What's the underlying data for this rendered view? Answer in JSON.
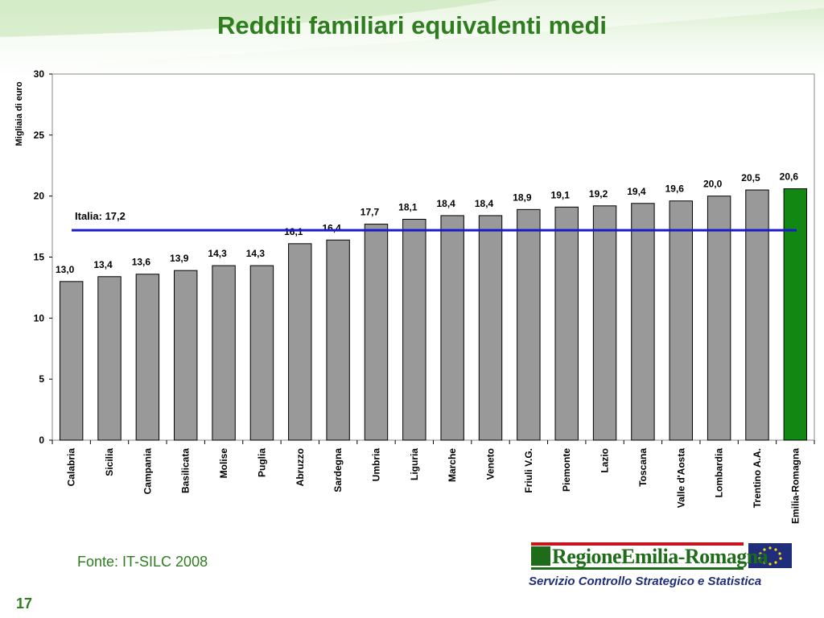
{
  "title": "Redditi familiari equivalenti medi",
  "source": "Fonte: IT-SILC 2008",
  "page_number": "17",
  "logo": {
    "name": "RegioneEmilia-Romagna",
    "service": "Servizio Controllo Strategico e Statistica"
  },
  "colors": {
    "bar": "#999999",
    "highlight_bar": "#118811",
    "reference_line": "#1a1acc",
    "title": "#2e7d1f"
  },
  "chart_data": {
    "type": "bar",
    "title": "",
    "ylabel": "Migliaia di euro",
    "xlabel": "",
    "ylim": [
      0,
      30
    ],
    "yticks": [
      0,
      5,
      10,
      15,
      20,
      25,
      30
    ],
    "grid": false,
    "categories": [
      "Calabria",
      "Sicilia",
      "Campania",
      "Basilicata",
      "Molise",
      "Puglia",
      "Abruzzo",
      "Sardegna",
      "Umbria",
      "Liguria",
      "Marche",
      "Veneto",
      "Friuli V.G.",
      "Piemonte",
      "Lazio",
      "Toscana",
      "Valle d'Aosta",
      "Lombardia",
      "Trentino A.A.",
      "Emilia-Romagna"
    ],
    "values": [
      13.0,
      13.4,
      13.6,
      13.9,
      14.3,
      14.3,
      16.1,
      16.4,
      17.7,
      18.1,
      18.4,
      18.4,
      18.9,
      19.1,
      19.2,
      19.4,
      19.6,
      20.0,
      20.5,
      20.6
    ],
    "value_labels": [
      "13,0",
      "13,4",
      "13,6",
      "13,9",
      "14,3",
      "14,3",
      "16,1",
      "16,4",
      "17,7",
      "18,1",
      "18,4",
      "18,4",
      "18,9",
      "19,1",
      "19,2",
      "19,4",
      "19,6",
      "20,0",
      "20,5",
      "20,6"
    ],
    "highlight": "Emilia-Romagna",
    "reference_line": {
      "value": 17.2,
      "label": "Italia: 17,2"
    }
  }
}
